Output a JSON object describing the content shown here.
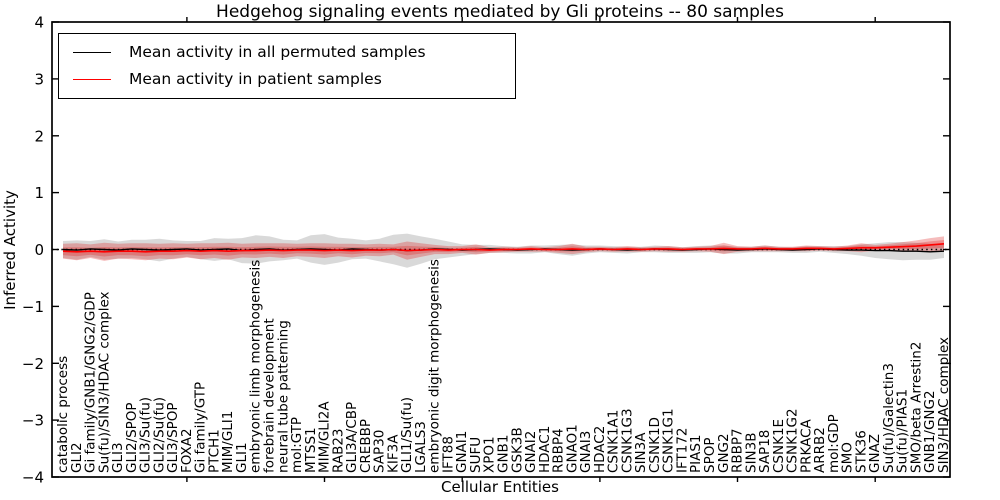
{
  "figure": {
    "title": "Hedgehog signaling events mediated by Gli proteins -- 80 samples",
    "xlabel": "Cellular Entities",
    "ylabel": "Inferred Activity"
  },
  "legend": {
    "entries": [
      {
        "label": "Mean activity in all permuted samples",
        "color": "#000000"
      },
      {
        "label": "Mean activity in patient samples",
        "color": "#ff0000"
      }
    ]
  },
  "axes": {
    "ylim": [
      -4,
      4
    ],
    "y_tick_labels": [
      "4",
      "3",
      "2",
      "1",
      "0",
      "−1",
      "−2",
      "−3",
      "−4"
    ],
    "y_tick_values": [
      4,
      3,
      2,
      1,
      0,
      -1,
      -2,
      -3,
      -4
    ],
    "x_major_tick_indices": [
      9,
      19,
      29,
      39,
      49,
      59
    ],
    "grid": "off",
    "zero_line_style": "dotted"
  },
  "colors": {
    "permuted_line": "#000000",
    "patient_line": "#ff0000",
    "permuted_band": "rgba(120,120,120,0.28)",
    "patient_band": "rgba(221,34,34,0.30)",
    "frame": "#000000"
  },
  "chart_data": {
    "type": "line",
    "title": "Hedgehog signaling events mediated by Gli proteins -- 80 samples",
    "xlabel": "Cellular Entities",
    "ylabel": "Inferred Activity",
    "ylim": [
      -4,
      4
    ],
    "legend_position": "upper left",
    "categories": [
      "catabolic process",
      "GLI2",
      "Gi family/GNB1/GNG2/GDP",
      "Su(fu)/SIN3/HDAC complex",
      "GLI3",
      "GLI2/SPOP",
      "GLI3/Su(fu)",
      "GLI2/Su(fu)",
      "GLI3/SPOP",
      "FOXA2",
      "Gi family/GTP",
      "PTCH1",
      "MIM/GLI1",
      "GLI1",
      "embryonic limb morphogenesis",
      "forebrain development",
      "neural tube patterning",
      "mol:GTP",
      "MTSS1",
      "MIM/GLI2A",
      "RAB23",
      "GLI3A/CBP",
      "CREBBP",
      "SAP30",
      "KIF3A",
      "GLI1/Su(fu)",
      "LGALS3",
      "embryonic digit morphogenesis",
      "IFT88",
      "GNAI1",
      "SUFU",
      "XPO1",
      "GNB1",
      "GSK3B",
      "GNAI2",
      "HDAC1",
      "RBBP4",
      "GNAO1",
      "GNAI3",
      "HDAC2",
      "CSNK1A1",
      "CSNK1G3",
      "SIN3A",
      "CSNK1D",
      "CSNK1G1",
      "IFT172",
      "PIAS1",
      "SPOP",
      "GNG2",
      "RBBP7",
      "SIN3B",
      "SAP18",
      "CSNK1E",
      "CSNK1G2",
      "PRKACA",
      "ARRB2",
      "mol:GDP",
      "SMO",
      "STK36",
      "GNAZ",
      "Su(fu)/Galectin3",
      "Su(fu)/PIAS1",
      "SMO/beta Arrestin2",
      "GNB1/GNG2",
      "SIN3/HDAC complex"
    ],
    "series": [
      {
        "name": "Mean activity in all permuted samples",
        "color": "#000000",
        "values": [
          0.0,
          -0.01,
          0.01,
          0.0,
          -0.01,
          0.01,
          0.0,
          -0.01,
          0.0,
          0.01,
          -0.01,
          0.0,
          0.01,
          -0.02,
          0.0,
          0.01,
          -0.01,
          0.0,
          0.01,
          0.0,
          -0.01,
          0.01,
          0.0,
          -0.01,
          0.0,
          -0.02,
          -0.01,
          0.01,
          0.0,
          -0.01,
          0.0,
          0.01,
          0.0,
          -0.01,
          0.0,
          0.01,
          0.0,
          -0.01,
          0.0,
          0.01,
          0.0,
          -0.01,
          0.0,
          0.01,
          0.0,
          -0.01,
          0.0,
          0.01,
          0.0,
          -0.01,
          0.0,
          0.01,
          0.0,
          -0.01,
          0.0,
          0.01,
          0.0,
          -0.01,
          -0.01,
          -0.02,
          -0.02,
          -0.03,
          -0.03,
          -0.04,
          -0.03
        ],
        "std": [
          0.15,
          0.17,
          0.14,
          0.18,
          0.15,
          0.16,
          0.17,
          0.2,
          0.16,
          0.14,
          0.16,
          0.2,
          0.18,
          0.22,
          0.25,
          0.22,
          0.18,
          0.16,
          0.24,
          0.27,
          0.22,
          0.18,
          0.16,
          0.2,
          0.26,
          0.3,
          0.24,
          0.18,
          0.14,
          0.1,
          0.08,
          0.07,
          0.06,
          0.06,
          0.07,
          0.06,
          0.08,
          0.1,
          0.07,
          0.06,
          0.06,
          0.06,
          0.05,
          0.06,
          0.06,
          0.05,
          0.06,
          0.06,
          0.07,
          0.06,
          0.05,
          0.06,
          0.05,
          0.05,
          0.06,
          0.05,
          0.06,
          0.07,
          0.1,
          0.13,
          0.15,
          0.16,
          0.15,
          0.14,
          0.12
        ]
      },
      {
        "name": "Mean activity in patient samples",
        "color": "#ff0000",
        "values": [
          -0.03,
          -0.04,
          -0.03,
          -0.04,
          -0.03,
          -0.03,
          -0.04,
          -0.03,
          -0.03,
          -0.02,
          -0.03,
          -0.02,
          -0.03,
          -0.02,
          -0.02,
          -0.01,
          -0.02,
          -0.01,
          -0.01,
          -0.02,
          -0.01,
          -0.02,
          -0.01,
          -0.01,
          0.0,
          -0.02,
          -0.01,
          0.0,
          -0.01,
          0.0,
          0.0,
          -0.01,
          0.0,
          0.0,
          0.01,
          0.0,
          0.0,
          0.01,
          0.0,
          0.01,
          0.0,
          0.01,
          0.0,
          0.01,
          0.01,
          0.0,
          0.01,
          0.01,
          0.02,
          0.01,
          0.01,
          0.02,
          0.01,
          0.01,
          0.02,
          0.02,
          0.01,
          0.02,
          0.03,
          0.03,
          0.04,
          0.05,
          0.06,
          0.08,
          0.1
        ],
        "std": [
          0.13,
          0.15,
          0.12,
          0.16,
          0.13,
          0.14,
          0.15,
          0.13,
          0.14,
          0.12,
          0.14,
          0.13,
          0.15,
          0.12,
          0.13,
          0.12,
          0.13,
          0.11,
          0.12,
          0.13,
          0.11,
          0.12,
          0.1,
          0.11,
          0.09,
          0.16,
          0.12,
          0.08,
          0.07,
          0.06,
          0.09,
          0.05,
          0.05,
          0.04,
          0.05,
          0.04,
          0.06,
          0.09,
          0.05,
          0.04,
          0.04,
          0.05,
          0.04,
          0.04,
          0.05,
          0.04,
          0.04,
          0.05,
          0.1,
          0.05,
          0.04,
          0.05,
          0.04,
          0.04,
          0.05,
          0.04,
          0.04,
          0.05,
          0.08,
          0.05,
          0.06,
          0.08,
          0.1,
          0.12,
          0.13
        ]
      }
    ]
  }
}
